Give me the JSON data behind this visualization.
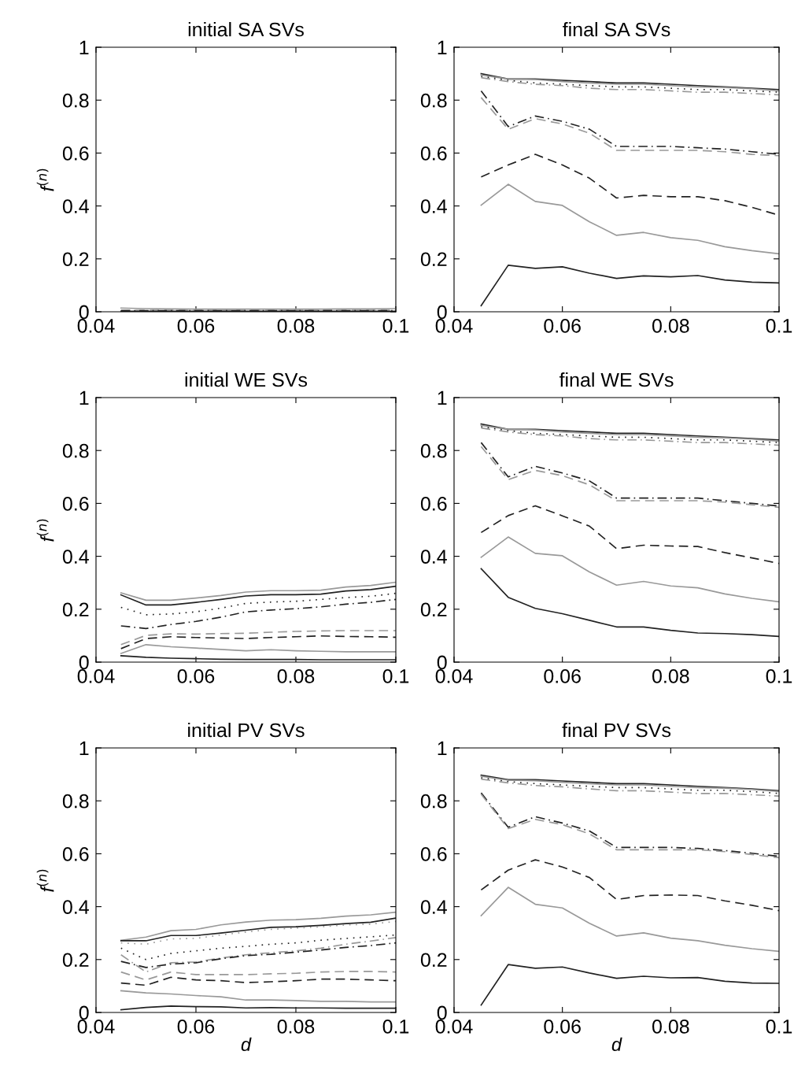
{
  "chart_data": [
    {
      "type": "line",
      "title": "initial SA SVs",
      "ylabel": "f$^{(n)}$",
      "xlim": [
        0.04,
        0.1
      ],
      "xticks": [
        0.04,
        0.06,
        0.08,
        0.1
      ],
      "ylim": [
        0,
        1
      ],
      "yticks": [
        0,
        0.2,
        0.4,
        0.6,
        0.8,
        1
      ],
      "grid": false,
      "x": [
        0.045,
        0.05,
        0.055,
        0.06,
        0.065,
        0.07,
        0.075,
        0.08,
        0.085,
        0.09,
        0.095,
        0.1
      ],
      "series": [
        {
          "color": "#999999",
          "line_style": "solid",
          "values": [
            0.014,
            0.012,
            0.011,
            0.01,
            0.01,
            0.01,
            0.01,
            0.01,
            0.01,
            0.011,
            0.011,
            0.012
          ]
        },
        {
          "color": "#999999",
          "line_style": "dashed",
          "values": [
            0.006,
            0.006,
            0.006,
            0.006,
            0.006,
            0.006,
            0.006,
            0.006,
            0.006,
            0.006,
            0.006,
            0.006
          ]
        },
        {
          "color": "#222222",
          "line_style": "dashdot",
          "values": [
            0.004,
            0.004,
            0.004,
            0.004,
            0.004,
            0.004,
            0.004,
            0.004,
            0.004,
            0.004,
            0.004,
            0.004
          ]
        },
        {
          "color": "#222222",
          "line_style": "solid",
          "values": [
            0.002,
            0.002,
            0.002,
            0.002,
            0.002,
            0.002,
            0.002,
            0.002,
            0.002,
            0.002,
            0.002,
            0.002
          ]
        }
      ]
    },
    {
      "type": "line",
      "title": "final SA SVs",
      "xlim": [
        0.04,
        0.1
      ],
      "xticks": [
        0.04,
        0.06,
        0.08,
        0.1
      ],
      "ylim": [
        0,
        1
      ],
      "yticks": [
        0,
        0.2,
        0.4,
        0.6,
        0.8,
        1
      ],
      "grid": false,
      "x": [
        0.045,
        0.05,
        0.055,
        0.06,
        0.065,
        0.07,
        0.075,
        0.08,
        0.085,
        0.09,
        0.095,
        0.1
      ],
      "series": [
        {
          "color": "#222222",
          "line_style": "solid",
          "values": [
            0.9,
            0.88,
            0.88,
            0.875,
            0.87,
            0.865,
            0.865,
            0.86,
            0.855,
            0.85,
            0.845,
            0.84
          ]
        },
        {
          "color": "#999999",
          "line_style": "solid",
          "values": [
            0.895,
            0.88,
            0.878,
            0.87,
            0.865,
            0.86,
            0.86,
            0.855,
            0.85,
            0.848,
            0.843,
            0.835
          ]
        },
        {
          "color": "#222222",
          "line_style": "dotted",
          "values": [
            0.89,
            0.875,
            0.865,
            0.86,
            0.855,
            0.85,
            0.85,
            0.845,
            0.84,
            0.84,
            0.835,
            0.83
          ]
        },
        {
          "color": "#999999",
          "line_style": "dashdot",
          "values": [
            0.885,
            0.87,
            0.86,
            0.855,
            0.845,
            0.84,
            0.84,
            0.835,
            0.83,
            0.83,
            0.825,
            0.82
          ]
        },
        {
          "color": "#222222",
          "line_style": "dashdot",
          "values": [
            0.835,
            0.7,
            0.74,
            0.72,
            0.69,
            0.625,
            0.625,
            0.625,
            0.62,
            0.615,
            0.605,
            0.595
          ]
        },
        {
          "color": "#999999",
          "line_style": "dashed",
          "values": [
            0.81,
            0.69,
            0.73,
            0.71,
            0.675,
            0.61,
            0.61,
            0.61,
            0.61,
            0.605,
            0.595,
            0.59
          ]
        },
        {
          "color": "#222222",
          "line_style": "dashed",
          "values": [
            0.51,
            0.555,
            0.595,
            0.555,
            0.505,
            0.43,
            0.44,
            0.435,
            0.435,
            0.42,
            0.395,
            0.365
          ]
        },
        {
          "color": "#999999",
          "line_style": "solid",
          "values": [
            0.403,
            0.482,
            0.417,
            0.402,
            0.34,
            0.289,
            0.3,
            0.28,
            0.27,
            0.246,
            0.231,
            0.219
          ]
        },
        {
          "color": "#222222",
          "line_style": "solid",
          "values": [
            0.023,
            0.176,
            0.164,
            0.17,
            0.146,
            0.126,
            0.136,
            0.132,
            0.137,
            0.12,
            0.112,
            0.109
          ]
        }
      ]
    },
    {
      "type": "line",
      "title": "initial WE SVs",
      "ylabel": "f$^{(n)}$",
      "xlim": [
        0.04,
        0.1
      ],
      "xticks": [
        0.04,
        0.06,
        0.08,
        0.1
      ],
      "ylim": [
        0,
        1
      ],
      "yticks": [
        0,
        0.2,
        0.4,
        0.6,
        0.8,
        1
      ],
      "grid": false,
      "x": [
        0.045,
        0.05,
        0.055,
        0.06,
        0.065,
        0.07,
        0.075,
        0.08,
        0.085,
        0.09,
        0.095,
        0.1
      ],
      "series": [
        {
          "color": "#999999",
          "line_style": "solid",
          "values": [
            0.262,
            0.234,
            0.234,
            0.242,
            0.252,
            0.265,
            0.27,
            0.27,
            0.272,
            0.284,
            0.29,
            0.302
          ]
        },
        {
          "color": "#222222",
          "line_style": "solid",
          "values": [
            0.254,
            0.216,
            0.216,
            0.226,
            0.237,
            0.25,
            0.255,
            0.255,
            0.257,
            0.269,
            0.274,
            0.287
          ]
        },
        {
          "color": "#222222",
          "line_style": "dotted",
          "values": [
            0.207,
            0.179,
            0.182,
            0.19,
            0.204,
            0.222,
            0.227,
            0.23,
            0.237,
            0.244,
            0.249,
            0.26
          ]
        },
        {
          "color": "#222222",
          "line_style": "dashdot",
          "values": [
            0.137,
            0.127,
            0.142,
            0.154,
            0.17,
            0.19,
            0.197,
            0.202,
            0.209,
            0.219,
            0.226,
            0.237
          ]
        },
        {
          "color": "#999999",
          "line_style": "dashed",
          "values": [
            0.066,
            0.101,
            0.107,
            0.106,
            0.108,
            0.109,
            0.113,
            0.116,
            0.118,
            0.119,
            0.119,
            0.119
          ]
        },
        {
          "color": "#222222",
          "line_style": "dashed",
          "values": [
            0.051,
            0.089,
            0.096,
            0.093,
            0.091,
            0.089,
            0.093,
            0.096,
            0.099,
            0.097,
            0.096,
            0.094
          ]
        },
        {
          "color": "#999999",
          "line_style": "solid",
          "values": [
            0.033,
            0.066,
            0.058,
            0.053,
            0.048,
            0.043,
            0.047,
            0.043,
            0.041,
            0.039,
            0.039,
            0.039
          ]
        },
        {
          "color": "#222222",
          "line_style": "solid",
          "values": [
            0.024,
            0.018,
            0.015,
            0.013,
            0.011,
            0.01,
            0.01,
            0.01,
            0.009,
            0.009,
            0.009,
            0.009
          ]
        }
      ]
    },
    {
      "type": "line",
      "title": "final WE SVs",
      "xlim": [
        0.04,
        0.1
      ],
      "xticks": [
        0.04,
        0.06,
        0.08,
        0.1
      ],
      "ylim": [
        0,
        1
      ],
      "yticks": [
        0,
        0.2,
        0.4,
        0.6,
        0.8,
        1
      ],
      "grid": false,
      "x": [
        0.045,
        0.05,
        0.055,
        0.06,
        0.065,
        0.07,
        0.075,
        0.08,
        0.085,
        0.09,
        0.095,
        0.1
      ],
      "series": [
        {
          "color": "#222222",
          "line_style": "solid",
          "values": [
            0.9,
            0.88,
            0.88,
            0.875,
            0.87,
            0.865,
            0.865,
            0.86,
            0.855,
            0.85,
            0.845,
            0.84
          ]
        },
        {
          "color": "#999999",
          "line_style": "solid",
          "values": [
            0.895,
            0.88,
            0.878,
            0.87,
            0.865,
            0.86,
            0.86,
            0.855,
            0.85,
            0.848,
            0.843,
            0.835
          ]
        },
        {
          "color": "#222222",
          "line_style": "dotted",
          "values": [
            0.89,
            0.875,
            0.865,
            0.86,
            0.855,
            0.85,
            0.85,
            0.845,
            0.84,
            0.84,
            0.835,
            0.83
          ]
        },
        {
          "color": "#999999",
          "line_style": "dashdot",
          "values": [
            0.885,
            0.87,
            0.86,
            0.855,
            0.845,
            0.84,
            0.84,
            0.835,
            0.83,
            0.83,
            0.825,
            0.82
          ]
        },
        {
          "color": "#222222",
          "line_style": "dashdot",
          "values": [
            0.83,
            0.7,
            0.74,
            0.715,
            0.685,
            0.62,
            0.62,
            0.62,
            0.62,
            0.61,
            0.6,
            0.59
          ]
        },
        {
          "color": "#999999",
          "line_style": "dashed",
          "values": [
            0.815,
            0.69,
            0.725,
            0.705,
            0.67,
            0.61,
            0.61,
            0.61,
            0.61,
            0.605,
            0.595,
            0.585
          ]
        },
        {
          "color": "#222222",
          "line_style": "dashed",
          "values": [
            0.49,
            0.554,
            0.591,
            0.553,
            0.514,
            0.429,
            0.442,
            0.439,
            0.437,
            0.414,
            0.394,
            0.373
          ]
        },
        {
          "color": "#999999",
          "line_style": "solid",
          "values": [
            0.396,
            0.473,
            0.411,
            0.402,
            0.341,
            0.291,
            0.305,
            0.288,
            0.281,
            0.258,
            0.241,
            0.228
          ]
        },
        {
          "color": "#222222",
          "line_style": "solid",
          "values": [
            0.353,
            0.245,
            0.203,
            0.183,
            0.158,
            0.133,
            0.133,
            0.12,
            0.11,
            0.108,
            0.104,
            0.097
          ]
        }
      ]
    },
    {
      "type": "line",
      "title": "initial PV SVs",
      "ylabel": "f$^{(n)}$",
      "xlabel": "d",
      "xlim": [
        0.04,
        0.1
      ],
      "xticks": [
        0.04,
        0.06,
        0.08,
        0.1
      ],
      "ylim": [
        0,
        1
      ],
      "yticks": [
        0,
        0.2,
        0.4,
        0.6,
        0.8,
        1
      ],
      "grid": false,
      "x": [
        0.045,
        0.05,
        0.055,
        0.06,
        0.065,
        0.07,
        0.075,
        0.08,
        0.085,
        0.09,
        0.095,
        0.1
      ],
      "series": [
        {
          "color": "#999999",
          "line_style": "solid",
          "values": [
            0.273,
            0.285,
            0.309,
            0.314,
            0.331,
            0.342,
            0.349,
            0.351,
            0.356,
            0.364,
            0.369,
            0.379
          ]
        },
        {
          "color": "#222222",
          "line_style": "solid",
          "values": [
            0.271,
            0.271,
            0.291,
            0.291,
            0.3,
            0.311,
            0.322,
            0.324,
            0.329,
            0.336,
            0.341,
            0.357
          ]
        },
        {
          "color": "#999999",
          "line_style": "dotted",
          "values": [
            0.263,
            0.258,
            0.278,
            0.28,
            0.293,
            0.304,
            0.314,
            0.319,
            0.324,
            0.331,
            0.334,
            0.344
          ]
        },
        {
          "color": "#222222",
          "line_style": "dotted",
          "values": [
            0.243,
            0.2,
            0.223,
            0.233,
            0.243,
            0.25,
            0.258,
            0.263,
            0.273,
            0.28,
            0.286,
            0.293
          ]
        },
        {
          "color": "#999999",
          "line_style": "dashdot",
          "values": [
            0.218,
            0.153,
            0.188,
            0.191,
            0.206,
            0.218,
            0.226,
            0.233,
            0.243,
            0.258,
            0.27,
            0.283
          ]
        },
        {
          "color": "#222222",
          "line_style": "dashdot",
          "values": [
            0.193,
            0.17,
            0.183,
            0.188,
            0.203,
            0.215,
            0.22,
            0.228,
            0.236,
            0.246,
            0.253,
            0.263
          ]
        },
        {
          "color": "#999999",
          "line_style": "dashed",
          "values": [
            0.153,
            0.123,
            0.153,
            0.143,
            0.143,
            0.143,
            0.146,
            0.148,
            0.153,
            0.155,
            0.155,
            0.153
          ]
        },
        {
          "color": "#222222",
          "line_style": "dashed",
          "values": [
            0.111,
            0.103,
            0.133,
            0.123,
            0.12,
            0.113,
            0.116,
            0.12,
            0.126,
            0.126,
            0.123,
            0.12
          ]
        },
        {
          "color": "#999999",
          "line_style": "solid",
          "values": [
            0.082,
            0.074,
            0.07,
            0.064,
            0.059,
            0.047,
            0.047,
            0.045,
            0.042,
            0.042,
            0.04,
            0.04
          ]
        },
        {
          "color": "#222222",
          "line_style": "solid",
          "values": [
            0.01,
            0.019,
            0.024,
            0.022,
            0.021,
            0.017,
            0.018,
            0.017,
            0.017,
            0.016,
            0.016,
            0.016
          ]
        }
      ]
    },
    {
      "type": "line",
      "title": "final PV SVs",
      "xlabel": "d",
      "xlim": [
        0.04,
        0.1
      ],
      "xticks": [
        0.04,
        0.06,
        0.08,
        0.1
      ],
      "ylim": [
        0,
        1
      ],
      "yticks": [
        0,
        0.2,
        0.4,
        0.6,
        0.8,
        1
      ],
      "grid": false,
      "x": [
        0.045,
        0.05,
        0.055,
        0.06,
        0.065,
        0.07,
        0.075,
        0.08,
        0.085,
        0.09,
        0.095,
        0.1
      ],
      "series": [
        {
          "color": "#222222",
          "line_style": "solid",
          "values": [
            0.897,
            0.88,
            0.88,
            0.875,
            0.87,
            0.865,
            0.865,
            0.86,
            0.855,
            0.85,
            0.845,
            0.838
          ]
        },
        {
          "color": "#999999",
          "line_style": "solid",
          "values": [
            0.893,
            0.878,
            0.876,
            0.87,
            0.865,
            0.86,
            0.86,
            0.855,
            0.85,
            0.848,
            0.843,
            0.835
          ]
        },
        {
          "color": "#222222",
          "line_style": "dotted",
          "values": [
            0.887,
            0.873,
            0.865,
            0.86,
            0.855,
            0.85,
            0.85,
            0.845,
            0.84,
            0.84,
            0.835,
            0.828
          ]
        },
        {
          "color": "#999999",
          "line_style": "dashdot",
          "values": [
            0.882,
            0.868,
            0.858,
            0.853,
            0.845,
            0.838,
            0.838,
            0.833,
            0.828,
            0.828,
            0.823,
            0.818
          ]
        },
        {
          "color": "#222222",
          "line_style": "dashdot",
          "values": [
            0.83,
            0.7,
            0.74,
            0.716,
            0.686,
            0.624,
            0.624,
            0.624,
            0.62,
            0.612,
            0.602,
            0.59
          ]
        },
        {
          "color": "#999999",
          "line_style": "dashed",
          "values": [
            0.825,
            0.695,
            0.73,
            0.71,
            0.675,
            0.615,
            0.615,
            0.615,
            0.615,
            0.608,
            0.597,
            0.585
          ]
        },
        {
          "color": "#222222",
          "line_style": "dashed",
          "values": [
            0.463,
            0.538,
            0.577,
            0.55,
            0.51,
            0.427,
            0.442,
            0.444,
            0.442,
            0.422,
            0.405,
            0.385
          ]
        },
        {
          "color": "#999999",
          "line_style": "solid",
          "values": [
            0.366,
            0.473,
            0.409,
            0.395,
            0.337,
            0.289,
            0.301,
            0.281,
            0.271,
            0.254,
            0.241,
            0.231
          ]
        },
        {
          "color": "#222222",
          "line_style": "solid",
          "values": [
            0.028,
            0.181,
            0.167,
            0.172,
            0.149,
            0.129,
            0.137,
            0.131,
            0.132,
            0.118,
            0.111,
            0.11
          ]
        }
      ]
    }
  ]
}
